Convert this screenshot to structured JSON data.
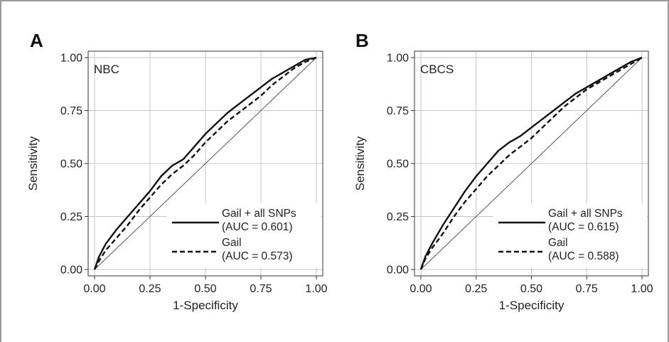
{
  "chart_data": [
    {
      "type": "line",
      "panel_label": "A",
      "inset_label": "NBC",
      "xlabel": "1-Specificity",
      "ylabel": "Sensitivity",
      "xlim": [
        0,
        1
      ],
      "ylim": [
        0,
        1
      ],
      "xticks": [
        "0.00",
        "0.25",
        "0.50",
        "0.75",
        "1.00"
      ],
      "yticks": [
        "0.00",
        "0.25",
        "0.50",
        "0.75",
        "1.00"
      ],
      "grid": true,
      "legend_position": "bottom-right",
      "reference_line": [
        [
          0,
          0
        ],
        [
          1,
          1
        ]
      ],
      "series": [
        {
          "name": "Gail + all SNPs",
          "auc_label": "(AUC = 0.601)",
          "style": "solid",
          "x": [
            0,
            0.02,
            0.05,
            0.1,
            0.15,
            0.2,
            0.25,
            0.3,
            0.35,
            0.4,
            0.45,
            0.5,
            0.55,
            0.6,
            0.65,
            0.7,
            0.75,
            0.8,
            0.85,
            0.9,
            0.95,
            1.0
          ],
          "y": [
            0,
            0.06,
            0.12,
            0.19,
            0.25,
            0.31,
            0.37,
            0.44,
            0.49,
            0.52,
            0.58,
            0.64,
            0.69,
            0.74,
            0.78,
            0.82,
            0.86,
            0.9,
            0.93,
            0.96,
            0.99,
            1.0
          ]
        },
        {
          "name": "Gail",
          "auc_label": "(AUC = 0.573)",
          "style": "dashed",
          "x": [
            0,
            0.02,
            0.05,
            0.1,
            0.15,
            0.2,
            0.25,
            0.3,
            0.35,
            0.4,
            0.45,
            0.5,
            0.55,
            0.6,
            0.65,
            0.7,
            0.75,
            0.8,
            0.85,
            0.9,
            0.95,
            1.0
          ],
          "y": [
            0,
            0.04,
            0.09,
            0.15,
            0.21,
            0.28,
            0.34,
            0.4,
            0.45,
            0.49,
            0.54,
            0.6,
            0.65,
            0.7,
            0.74,
            0.78,
            0.82,
            0.87,
            0.91,
            0.95,
            0.98,
            1.0
          ]
        }
      ]
    },
    {
      "type": "line",
      "panel_label": "B",
      "inset_label": "CBCS",
      "xlabel": "1-Specificity",
      "ylabel": "Sensitivity",
      "xlim": [
        0,
        1
      ],
      "ylim": [
        0,
        1
      ],
      "xticks": [
        "0.00",
        "0.25",
        "0.50",
        "0.75",
        "1.00"
      ],
      "yticks": [
        "0.00",
        "0.25",
        "0.50",
        "0.75",
        "1.00"
      ],
      "grid": true,
      "legend_position": "bottom-right",
      "reference_line": [
        [
          0,
          0
        ],
        [
          1,
          1
        ]
      ],
      "series": [
        {
          "name": "Gail + all SNPs",
          "auc_label": "(AUC = 0.615)",
          "style": "solid",
          "x": [
            0,
            0.02,
            0.05,
            0.1,
            0.15,
            0.2,
            0.25,
            0.3,
            0.35,
            0.4,
            0.45,
            0.5,
            0.55,
            0.6,
            0.65,
            0.7,
            0.75,
            0.8,
            0.85,
            0.9,
            0.95,
            1.0
          ],
          "y": [
            0,
            0.06,
            0.12,
            0.21,
            0.29,
            0.37,
            0.44,
            0.5,
            0.56,
            0.6,
            0.63,
            0.67,
            0.71,
            0.75,
            0.79,
            0.83,
            0.86,
            0.89,
            0.92,
            0.95,
            0.98,
            1.0
          ]
        },
        {
          "name": "Gail",
          "auc_label": "(AUC = 0.588)",
          "style": "dashed",
          "x": [
            0,
            0.02,
            0.05,
            0.1,
            0.15,
            0.2,
            0.25,
            0.3,
            0.35,
            0.4,
            0.45,
            0.5,
            0.55,
            0.6,
            0.65,
            0.7,
            0.75,
            0.8,
            0.85,
            0.9,
            0.95,
            1.0
          ],
          "y": [
            0,
            0.05,
            0.1,
            0.17,
            0.25,
            0.32,
            0.38,
            0.44,
            0.49,
            0.54,
            0.58,
            0.62,
            0.67,
            0.72,
            0.77,
            0.81,
            0.85,
            0.88,
            0.91,
            0.94,
            0.97,
            1.0
          ]
        }
      ]
    }
  ]
}
